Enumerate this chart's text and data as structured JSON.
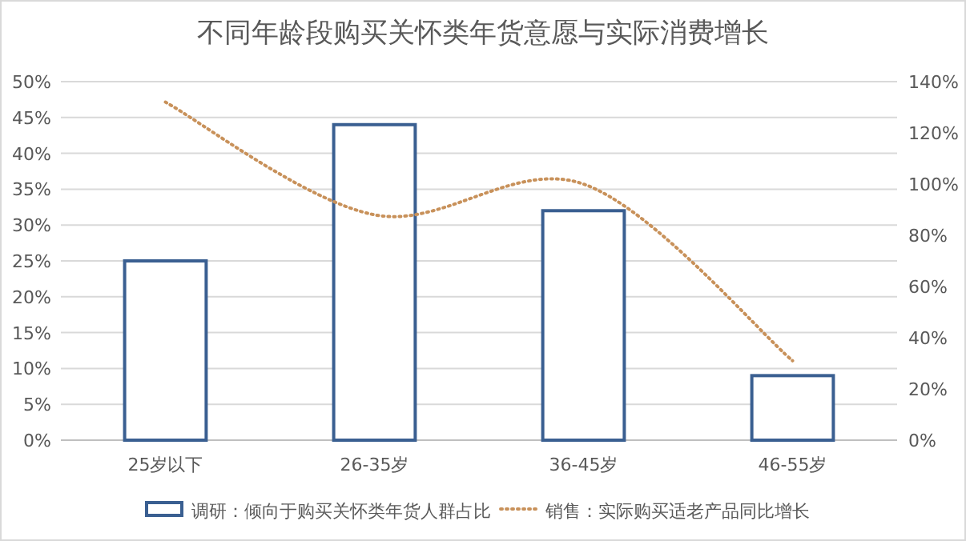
{
  "chart_data": {
    "type": "bar",
    "title": "不同年龄段购买关怀类年货意愿与实际消费增长",
    "categories": [
      "25岁以下",
      "26-35岁",
      "36-45岁",
      "46-55岁"
    ],
    "series": [
      {
        "name": "调研：倾向于购买关怀类年货人群占比",
        "color": "#3a5f91",
        "values": [
          25,
          44,
          32,
          9
        ]
      },
      {
        "name": "销售：实际购买适老产品同比增长",
        "type": "line",
        "axis": "y2",
        "color": "#c8915a",
        "line_style": "dotted",
        "values": [
          132,
          88,
          100,
          31
        ]
      }
    ],
    "ylim": [
      0,
      50
    ],
    "yticks": [
      {
        "value": 0,
        "label": "0%"
      },
      {
        "value": 5,
        "label": "5%"
      },
      {
        "value": 10,
        "label": "10%"
      },
      {
        "value": 15,
        "label": "15%"
      },
      {
        "value": 20,
        "label": "20%"
      },
      {
        "value": 25,
        "label": "25%"
      },
      {
        "value": 30,
        "label": "30%"
      },
      {
        "value": 35,
        "label": "35%"
      },
      {
        "value": 40,
        "label": "40%"
      },
      {
        "value": 45,
        "label": "45%"
      },
      {
        "value": 50,
        "label": "50%"
      }
    ],
    "y2lim": [
      0,
      140
    ],
    "y2ticks": [
      {
        "value": 0,
        "label": "0%"
      },
      {
        "value": 20,
        "label": "20%"
      },
      {
        "value": 40,
        "label": "40%"
      },
      {
        "value": 60,
        "label": "60%"
      },
      {
        "value": 80,
        "label": "80%"
      },
      {
        "value": 100,
        "label": "100%"
      },
      {
        "value": 120,
        "label": "120%"
      },
      {
        "value": 140,
        "label": "140%"
      }
    ],
    "grid": "y",
    "legend": "bottom"
  }
}
